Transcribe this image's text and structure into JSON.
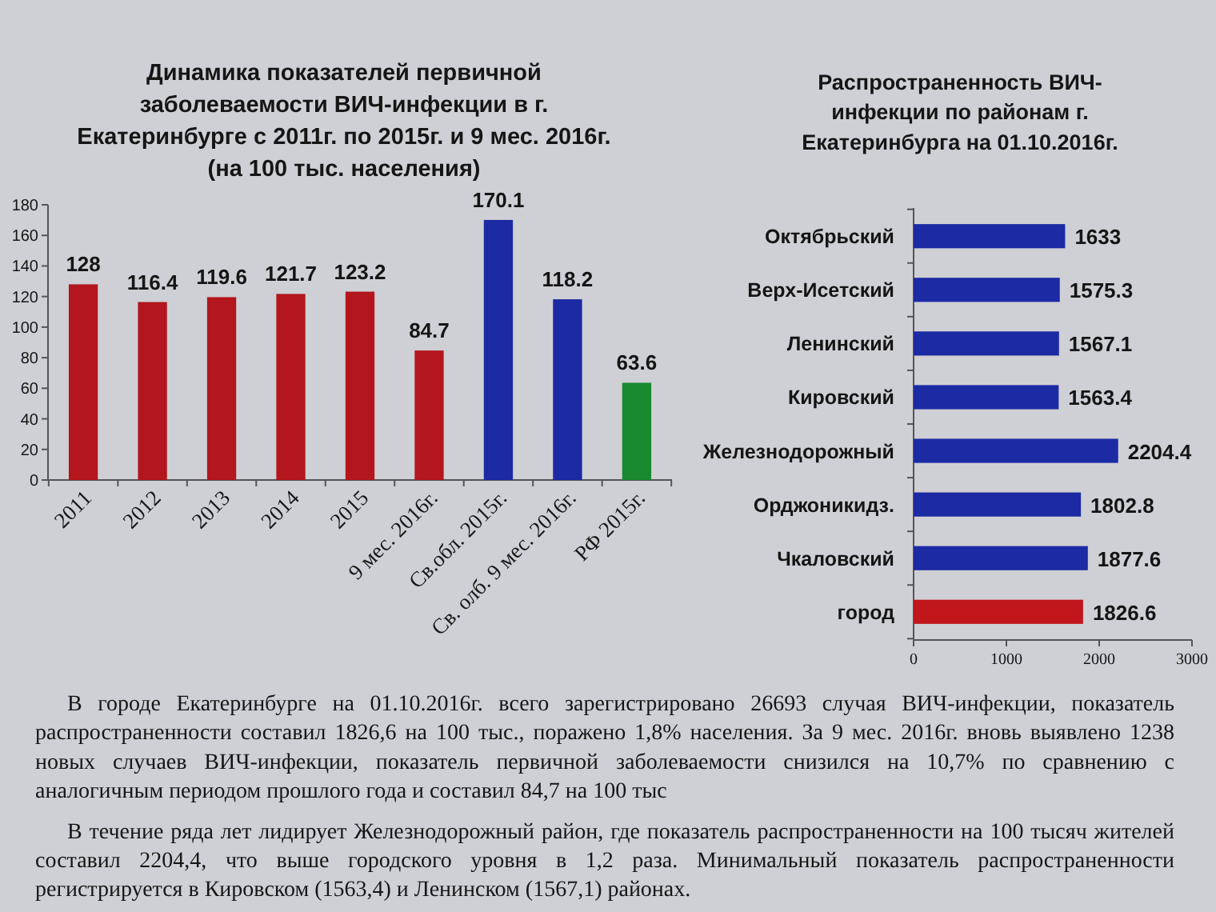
{
  "chart_data": [
    {
      "type": "bar",
      "title": "Динамика показателей первичной заболеваемости ВИЧ-инфекции в г. Екатеринбурге с 2011г. по 2015г. и 9 мес. 2016г. (на 100 тыс. населения)",
      "categories": [
        "2011",
        "2012",
        "2013",
        "2014",
        "2015",
        "9 мес. 2016г.",
        "Св.обл. 2015г.",
        "Св. олб. 9 мес. 2016г.",
        "РФ 2015г."
      ],
      "values": [
        128,
        116.4,
        119.6,
        121.7,
        123.2,
        84.7,
        170.1,
        118.2,
        63.6
      ],
      "colors": [
        "#b3161d",
        "#b3161d",
        "#b3161d",
        "#b3161d",
        "#b3161d",
        "#b3161d",
        "#1c2aa3",
        "#1c2aa3",
        "#198a30"
      ],
      "ylim": [
        0,
        180
      ],
      "yticks": [
        0,
        20,
        40,
        60,
        80,
        100,
        120,
        140,
        160,
        180
      ],
      "data_labels": true,
      "annotations": [
        "В городе Екатеринбурге на 01.10.2016г. всего зарегистрировано 26693 случая ВИЧ-инфекции, показатель распространенности составил 1826,6 на 100 тыс., поражено 1,8% населения. За 9 мес. 2016г. вновь выявлено 1238 новых случаев ВИЧ-инфекции, показатель первичной заболеваемости снизился на 10,7% по сравнению с аналогичным периодом прошлого года и составил 84,7 на 100 тыс",
        "В течение ряда лет лидирует Железнодорожный район, где показатель распространенности на 100 тысяч жителей составил 2204,4, что выше городского уровня в 1,2 раза. Минимальный показатель распространенности регистрируется в Кировском (1563,4) и Ленинском (1567,1) районах."
      ]
    },
    {
      "type": "bar",
      "orientation": "horizontal",
      "title": "Распространенность ВИЧ-инфекции по районам г. Екатеринбурга на 01.10.2016г.",
      "categories": [
        "Октябрьский",
        "Верх-Исетский",
        "Ленинский",
        "Кировский",
        "Железнодорожный",
        "Орджоникидз.",
        "Чкаловский",
        "город"
      ],
      "values": [
        1633,
        1575.3,
        1567.1,
        1563.4,
        2204.4,
        1802.8,
        1877.6,
        1826.6
      ],
      "colors": [
        "#1c2aa3",
        "#1c2aa3",
        "#1c2aa3",
        "#1c2aa3",
        "#1c2aa3",
        "#1c2aa3",
        "#1c2aa3",
        "#c0161c"
      ],
      "xlim": [
        0,
        3000
      ],
      "xticks": [
        0,
        1000,
        2000,
        3000
      ],
      "data_labels": true
    }
  ]
}
